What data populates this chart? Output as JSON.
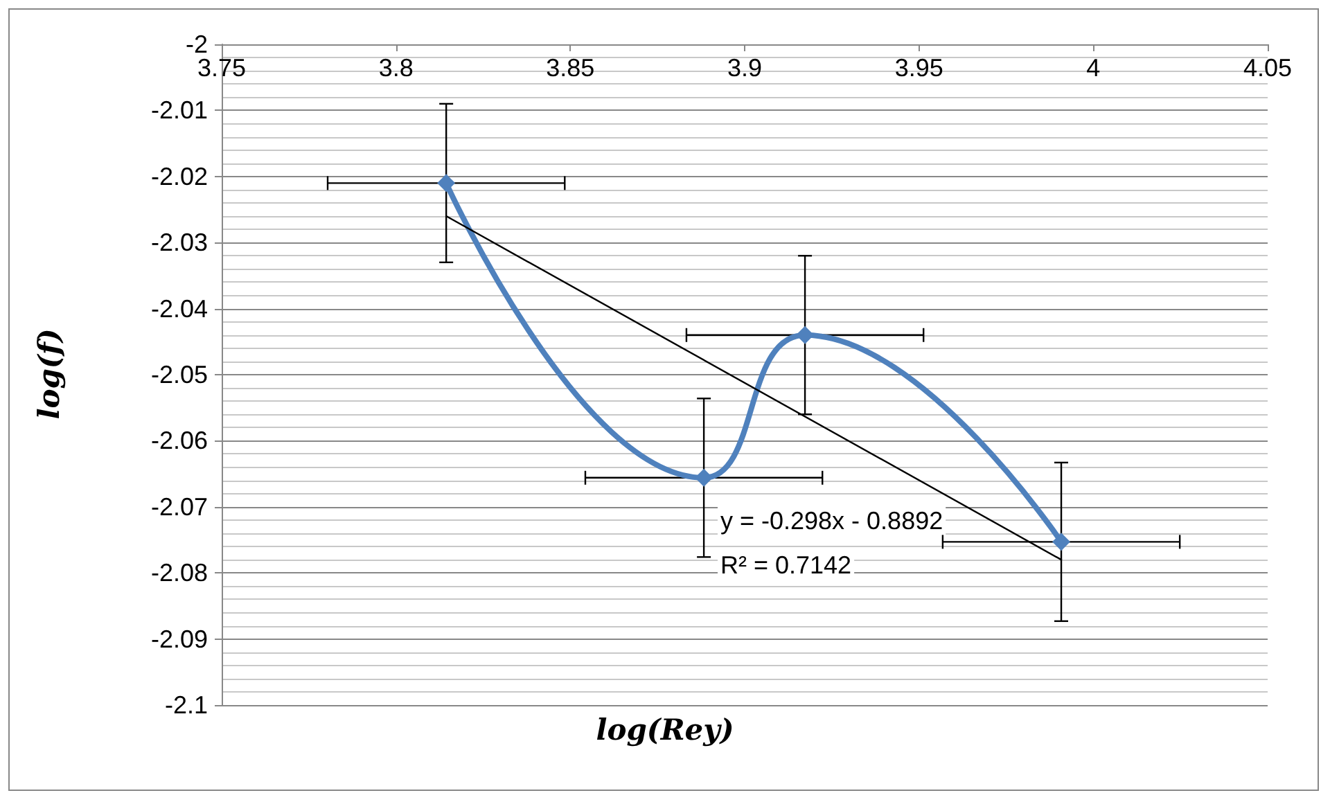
{
  "chart_data": {
    "type": "line",
    "xlabel": "log(Rey)",
    "ylabel": "log(f)",
    "xlim": [
      3.75,
      4.05
    ],
    "xticks": [
      3.75,
      3.8,
      3.85,
      3.9,
      3.95,
      4,
      4.05
    ],
    "ylim": [
      -2.1,
      -2
    ],
    "yticks": [
      -2.1,
      -2.09,
      -2.08,
      -2.07,
      -2.06,
      -2.05,
      -2.04,
      -2.03,
      -2.02,
      -2.01,
      -2
    ],
    "grid": "y",
    "series": [
      {
        "x": [
          3.8144,
          3.8883,
          3.9173,
          3.9908
        ],
        "values": [
          -2.021,
          -2.0656,
          -2.044,
          -2.0753
        ],
        "color": "#4f81bd",
        "marker": "diamond",
        "errors": [
          0.012,
          0.012,
          0.012,
          0.012
        ],
        "xerrors": [
          0.034,
          0.034,
          0.034,
          0.034
        ]
      },
      {
        "type": "line",
        "x": [
          3.8144,
          3.9908
        ],
        "values": [
          -2.026,
          -2.078
        ],
        "color": "#000000",
        "marker": "none"
      }
    ],
    "annotations": [
      "y = -0.298x - 0.8892",
      "R² = 0.7142"
    ]
  }
}
